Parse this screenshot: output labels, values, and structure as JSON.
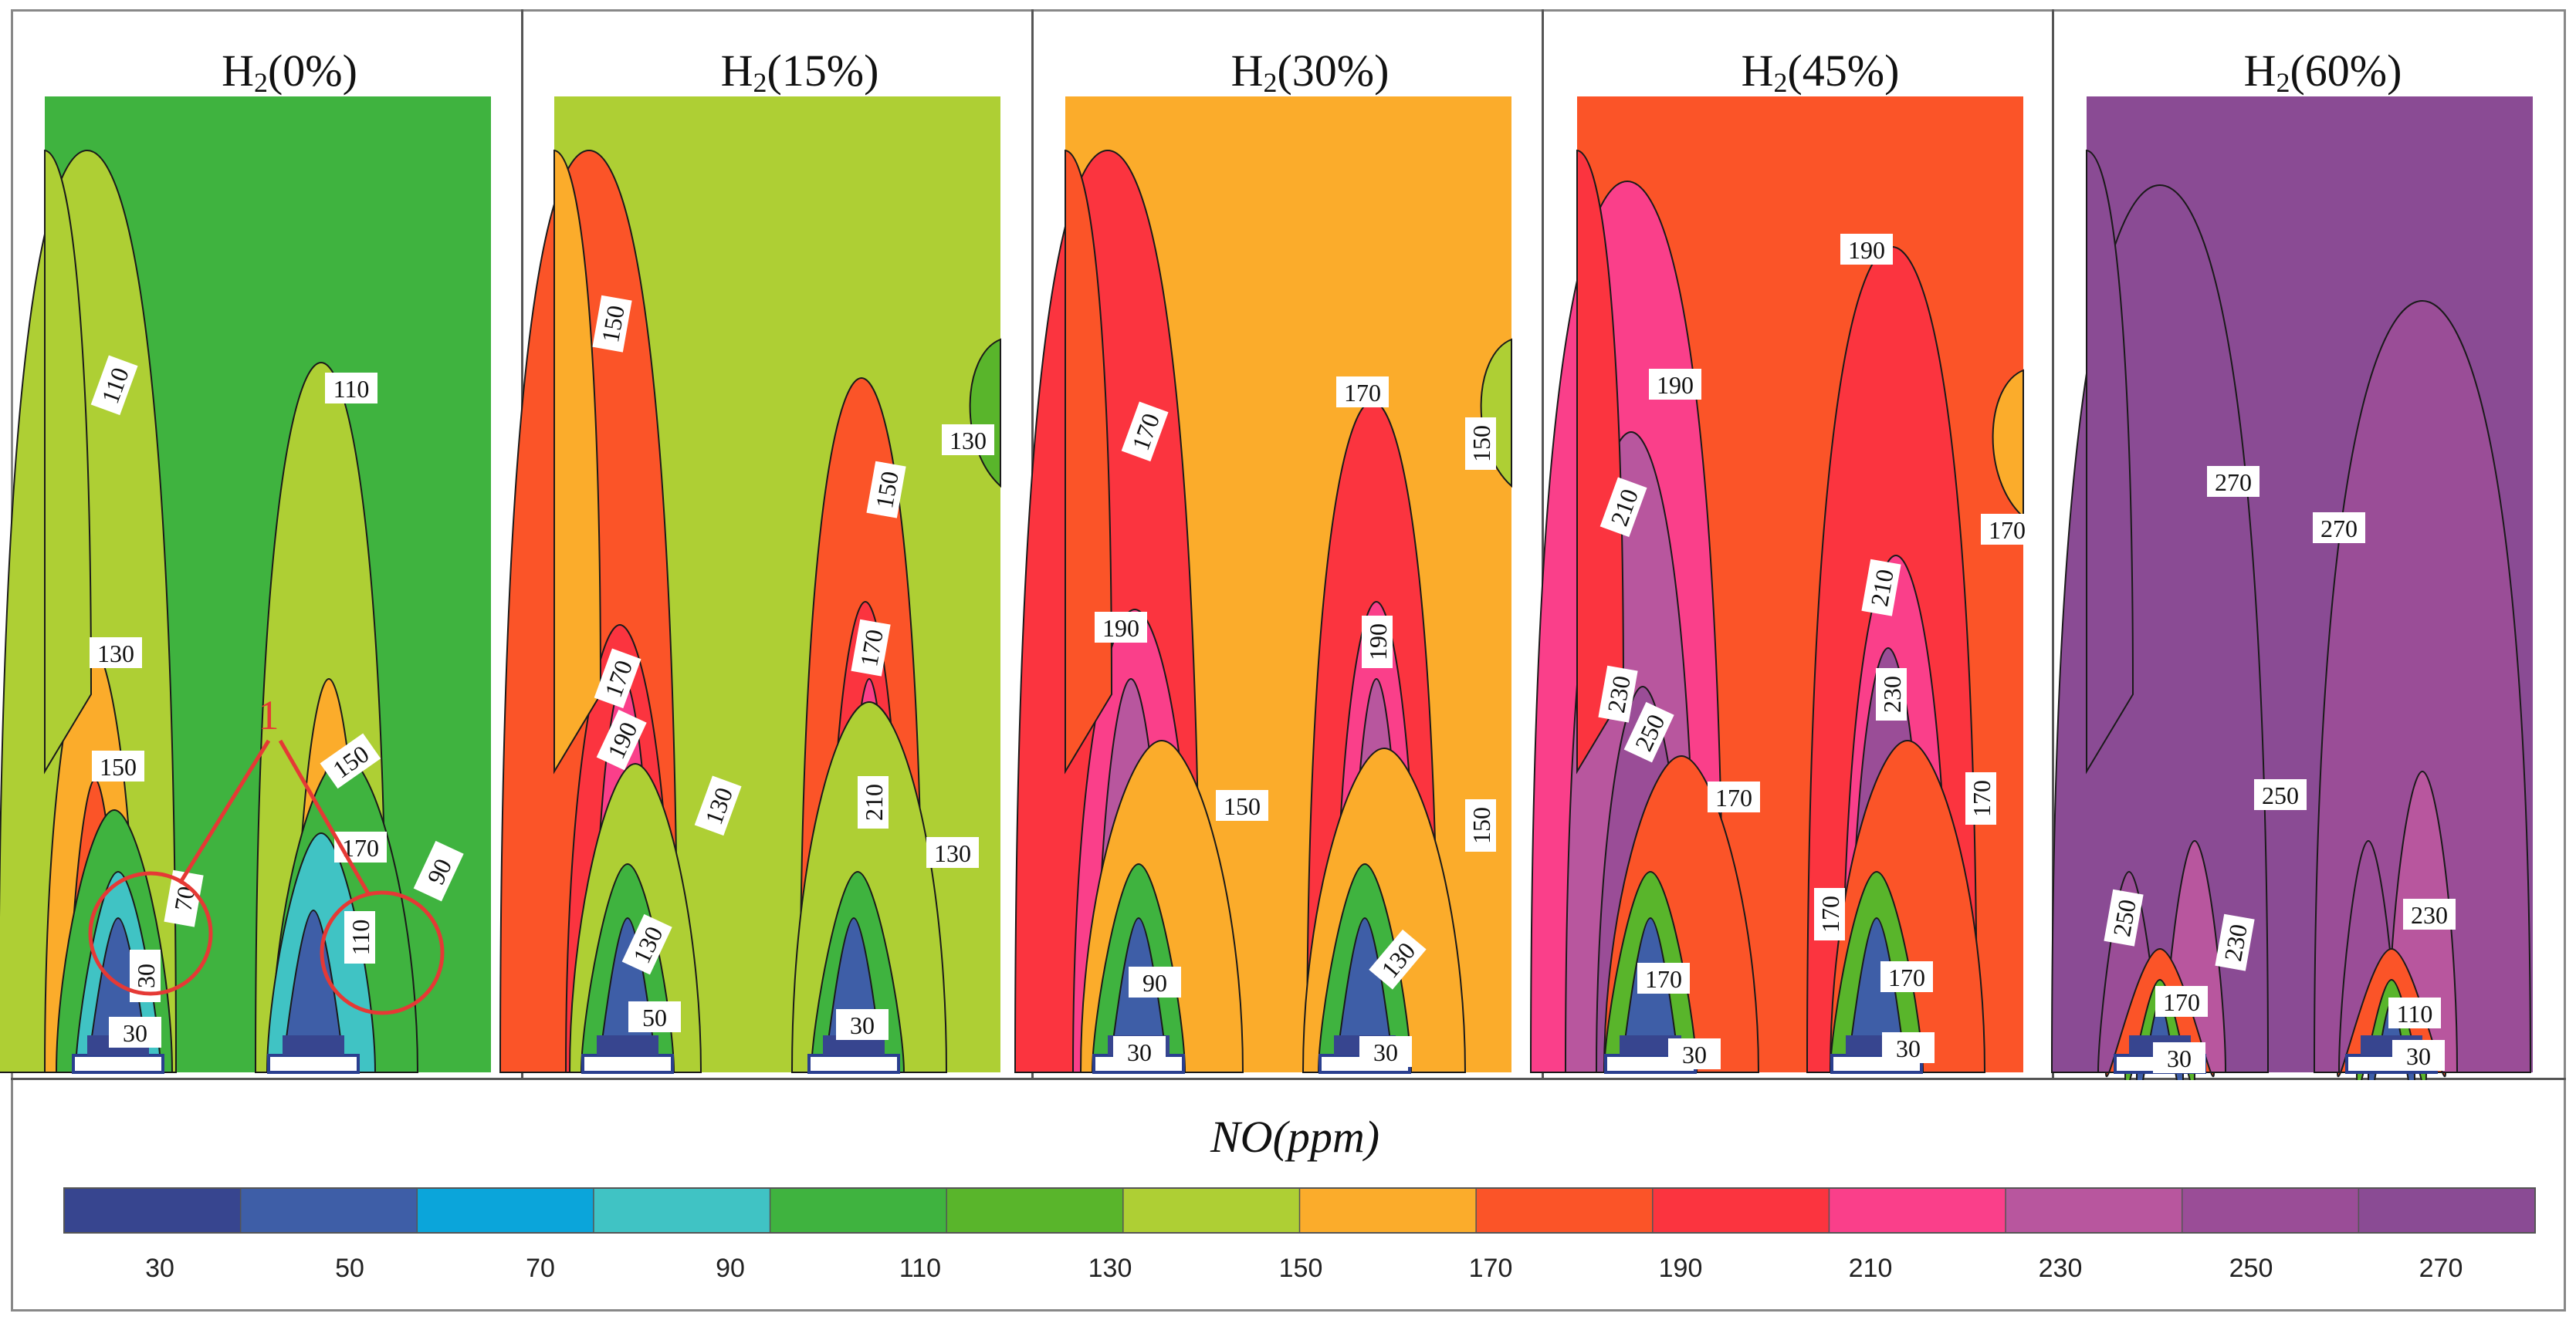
{
  "panels": [
    {
      "title_base": "H",
      "title_sub": "2",
      "title_rest": "(0%)",
      "background_level": 110,
      "background_color": "#3fb33f",
      "contour_labels": [
        "110",
        "110",
        "130",
        "150",
        "150",
        "170",
        "90",
        "70",
        "30",
        "110",
        "30"
      ],
      "annotation_marker": "1"
    },
    {
      "title_base": "H",
      "title_sub": "2",
      "title_rest": "(15%)",
      "background_level": 140,
      "background_color": "#aecf34",
      "contour_labels": [
        "150",
        "150",
        "130",
        "170",
        "190",
        "130",
        "170",
        "210",
        "130",
        "130",
        "50",
        "30"
      ]
    },
    {
      "title_base": "H",
      "title_sub": "2",
      "title_rest": "(30%)",
      "background_level": 160,
      "background_color": "#fbac2b",
      "contour_labels": [
        "170",
        "170",
        "150",
        "190",
        "190",
        "150",
        "150",
        "90",
        "130",
        "30",
        "30"
      ]
    },
    {
      "title_base": "H",
      "title_sub": "2",
      "title_rest": "(45%)",
      "background_level": 180,
      "background_color": "#fb5428",
      "contour_labels": [
        "190",
        "190",
        "170",
        "210",
        "210",
        "230",
        "230",
        "250",
        "170",
        "170",
        "170",
        "170",
        "170",
        "30",
        "30"
      ]
    },
    {
      "title_base": "H",
      "title_sub": "2",
      "title_rest": "(60%)",
      "background_level": 260,
      "background_color": "#8a4b94",
      "contour_labels": [
        "270",
        "270",
        "250",
        "250",
        "230",
        "230",
        "170",
        "110",
        "30",
        "30"
      ]
    }
  ],
  "colorbar": {
    "title": "NO(ppm)",
    "tick_labels": [
      "30",
      "50",
      "70",
      "90",
      "110",
      "130",
      "150",
      "170",
      "190",
      "210",
      "230",
      "250",
      "270"
    ],
    "colors": [
      "#37458f",
      "#3e5ea7",
      "#0ba5da",
      "#40c3c4",
      "#3fb33f",
      "#59b52b",
      "#aecf34",
      "#fbac2b",
      "#fb5428",
      "#fb343f",
      "#fa3f8a",
      "#b8569e",
      "#9a4d97",
      "#8a4b94"
    ]
  }
}
